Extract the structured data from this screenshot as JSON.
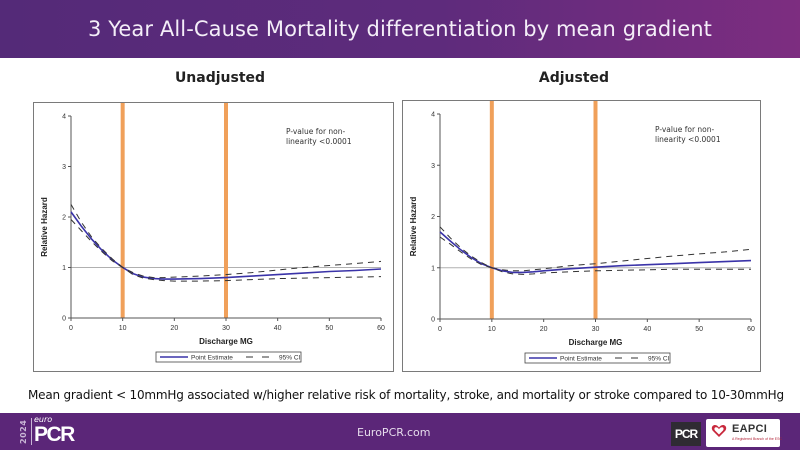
{
  "header": {
    "title": "3 Year All-Cause Mortality differentiation by mean gradient"
  },
  "colors": {
    "header_start": "#542a78",
    "header_end": "#7d2d80",
    "footer": "#5b2678",
    "point_estimate": "#3a33a8",
    "ci": "#333333",
    "reference_lines": "#f0a05a",
    "reference_hline": "#b0b0b0"
  },
  "chart_data": [
    {
      "type": "line",
      "title": "Unadjusted",
      "xlabel": "Discharge MG",
      "ylabel": "Relative Hazard",
      "xlim": [
        0,
        60
      ],
      "ylim": [
        0,
        4
      ],
      "xticks": [
        0,
        10,
        20,
        30,
        40,
        50,
        60
      ],
      "yticks": [
        0,
        1,
        2,
        3,
        4
      ],
      "grid": false,
      "reference_hline": 1,
      "vertical_markers": [
        10,
        30
      ],
      "annotation": "P-value for non-linearity <0.0001",
      "legend": {
        "placement": "bottom",
        "entries": [
          "Point Estimate",
          "95% CI"
        ]
      },
      "x": [
        0,
        2,
        4,
        6,
        8,
        10,
        12,
        14,
        16,
        18,
        20,
        25,
        30,
        35,
        40,
        45,
        50,
        55,
        60
      ],
      "series": [
        {
          "name": "Point Estimate",
          "values": [
            2.1,
            1.82,
            1.56,
            1.34,
            1.15,
            1.0,
            0.88,
            0.81,
            0.78,
            0.77,
            0.77,
            0.78,
            0.8,
            0.83,
            0.86,
            0.89,
            0.92,
            0.94,
            0.97
          ]
        },
        {
          "name": "95% CI upper",
          "values": [
            2.25,
            1.9,
            1.6,
            1.37,
            1.17,
            1.0,
            0.9,
            0.83,
            0.8,
            0.8,
            0.81,
            0.83,
            0.86,
            0.9,
            0.95,
            1.0,
            1.04,
            1.08,
            1.12
          ]
        },
        {
          "name": "95% CI lower",
          "values": [
            1.95,
            1.73,
            1.51,
            1.31,
            1.13,
            1.0,
            0.86,
            0.79,
            0.76,
            0.74,
            0.73,
            0.73,
            0.74,
            0.76,
            0.78,
            0.79,
            0.8,
            0.81,
            0.82
          ]
        }
      ]
    },
    {
      "type": "line",
      "title": "Adjusted",
      "xlabel": "Discharge MG",
      "ylabel": "Relative Hazard",
      "xlim": [
        0,
        60
      ],
      "ylim": [
        0,
        4
      ],
      "xticks": [
        0,
        10,
        20,
        30,
        40,
        50,
        60
      ],
      "yticks": [
        0,
        1,
        2,
        3,
        4
      ],
      "grid": false,
      "reference_hline": 1,
      "vertical_markers": [
        10,
        30
      ],
      "annotation": "P-value for non-linearity <0.0001",
      "legend": {
        "placement": "bottom",
        "entries": [
          "Point Estimate",
          "95% CI"
        ]
      },
      "x": [
        0,
        2,
        4,
        6,
        8,
        10,
        12,
        14,
        16,
        18,
        20,
        25,
        30,
        35,
        40,
        45,
        50,
        55,
        60
      ],
      "series": [
        {
          "name": "Point Estimate",
          "values": [
            1.7,
            1.52,
            1.35,
            1.2,
            1.08,
            1.0,
            0.94,
            0.91,
            0.91,
            0.92,
            0.94,
            0.98,
            1.01,
            1.04,
            1.06,
            1.08,
            1.1,
            1.12,
            1.14
          ]
        },
        {
          "name": "95% CI upper",
          "values": [
            1.8,
            1.58,
            1.39,
            1.23,
            1.1,
            1.0,
            0.96,
            0.94,
            0.94,
            0.96,
            0.98,
            1.04,
            1.08,
            1.13,
            1.18,
            1.23,
            1.27,
            1.31,
            1.36
          ]
        },
        {
          "name": "95% CI lower",
          "values": [
            1.6,
            1.46,
            1.31,
            1.17,
            1.06,
            1.0,
            0.92,
            0.88,
            0.87,
            0.88,
            0.9,
            0.92,
            0.94,
            0.95,
            0.96,
            0.97,
            0.97,
            0.97,
            0.97
          ]
        }
      ]
    }
  ],
  "caption": "Mean gradient < 10mmHg associated w/higher relative risk of mortality, stroke, and mortality or stroke compared to 10-30mmHg",
  "footer": {
    "logo_year": "2024",
    "logo_euro": "euro",
    "logo_pcr": "PCR",
    "url": "EuroPCR.com",
    "pcr_badge": "PCR",
    "eapci_label": "EAPCI",
    "eapci_sub": "A Registered Branch of the ESC"
  }
}
